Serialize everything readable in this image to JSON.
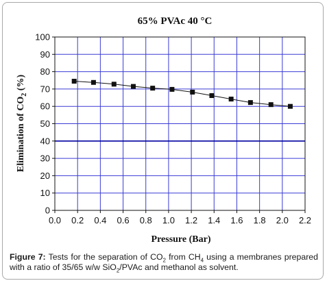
{
  "chart_data": {
    "type": "line",
    "title": "65% PVAc 40 °C",
    "xlabel": "Pressure (Bar)",
    "ylabel": "Elimination of CO2 (%)",
    "xlim": [
      0.0,
      2.2
    ],
    "ylim": [
      0,
      100
    ],
    "x_ticks": [
      "0.0",
      "0.2",
      "0.4",
      "0.6",
      "0.8",
      "1.0",
      "1.2",
      "1.4",
      "1.6",
      "1.8",
      "2.0",
      "2.2"
    ],
    "y_ticks": [
      "0",
      "10",
      "20",
      "30",
      "40",
      "50",
      "60",
      "70",
      "80",
      "90",
      "100"
    ],
    "grid": true,
    "legend": "none",
    "highlight_gridline_y": 40,
    "colors": {
      "grid": "#3a3ad6",
      "highlight_grid": "#0000a0",
      "marker": "#111111",
      "line": "#111111"
    },
    "series": [
      {
        "x": [
          0.17,
          0.34,
          0.52,
          0.69,
          0.86,
          1.03,
          1.21,
          1.38,
          1.55,
          1.72,
          1.9,
          2.07
        ],
        "y": [
          74.5,
          73.8,
          72.8,
          71.5,
          70.5,
          69.8,
          68.2,
          66.2,
          64.2,
          62.2,
          61.0,
          60.0
        ],
        "marker": "square"
      }
    ]
  },
  "caption": {
    "label": "Figure 7:",
    "text_1": " Tests for the separation of CO",
    "sub_1": "2",
    "text_2": " from CH",
    "sub_2": "4",
    "text_3": " using a membranes prepared with a ratio of 35/65 w/w SiO",
    "sub_3": "2",
    "text_4": "/PVAc and methanol as solvent."
  }
}
